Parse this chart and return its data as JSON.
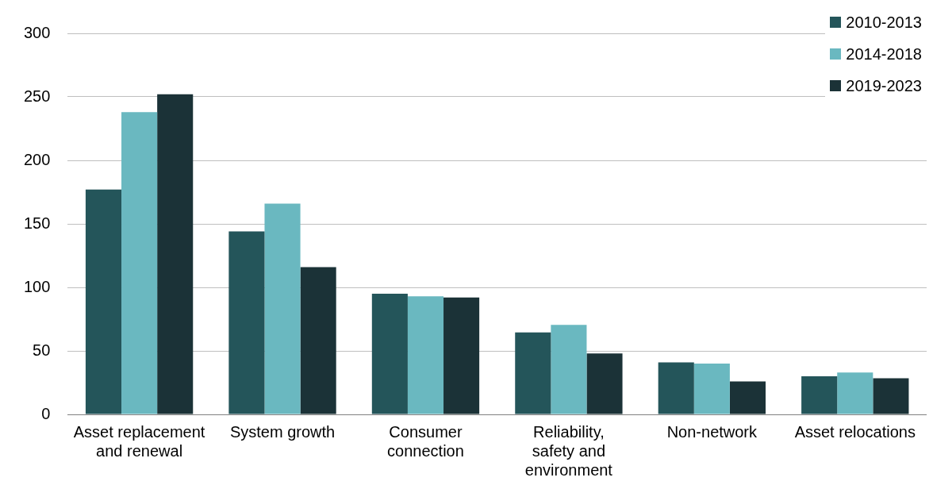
{
  "chart_data": {
    "type": "bar",
    "categories": [
      "Asset replacement and renewal",
      "System growth",
      "Consumer connection",
      "Reliability, safety and environment",
      "Non-network",
      "Asset relocations"
    ],
    "series": [
      {
        "name": "2010-2013",
        "color": "#24555a",
        "values": [
          177,
          144,
          95,
          64.5,
          41,
          30
        ]
      },
      {
        "name": "2014-2018",
        "color": "#6ab8c0",
        "values": [
          238,
          166,
          93,
          70.5,
          40,
          33
        ]
      },
      {
        "name": "2019-2023",
        "color": "#1b3237",
        "values": [
          252,
          116,
          92,
          48,
          26,
          28.5
        ]
      }
    ],
    "ylim": [
      0,
      300
    ],
    "yticks": [
      0,
      50,
      100,
      150,
      200,
      250,
      300
    ],
    "grid": "y",
    "legend": "top right"
  }
}
